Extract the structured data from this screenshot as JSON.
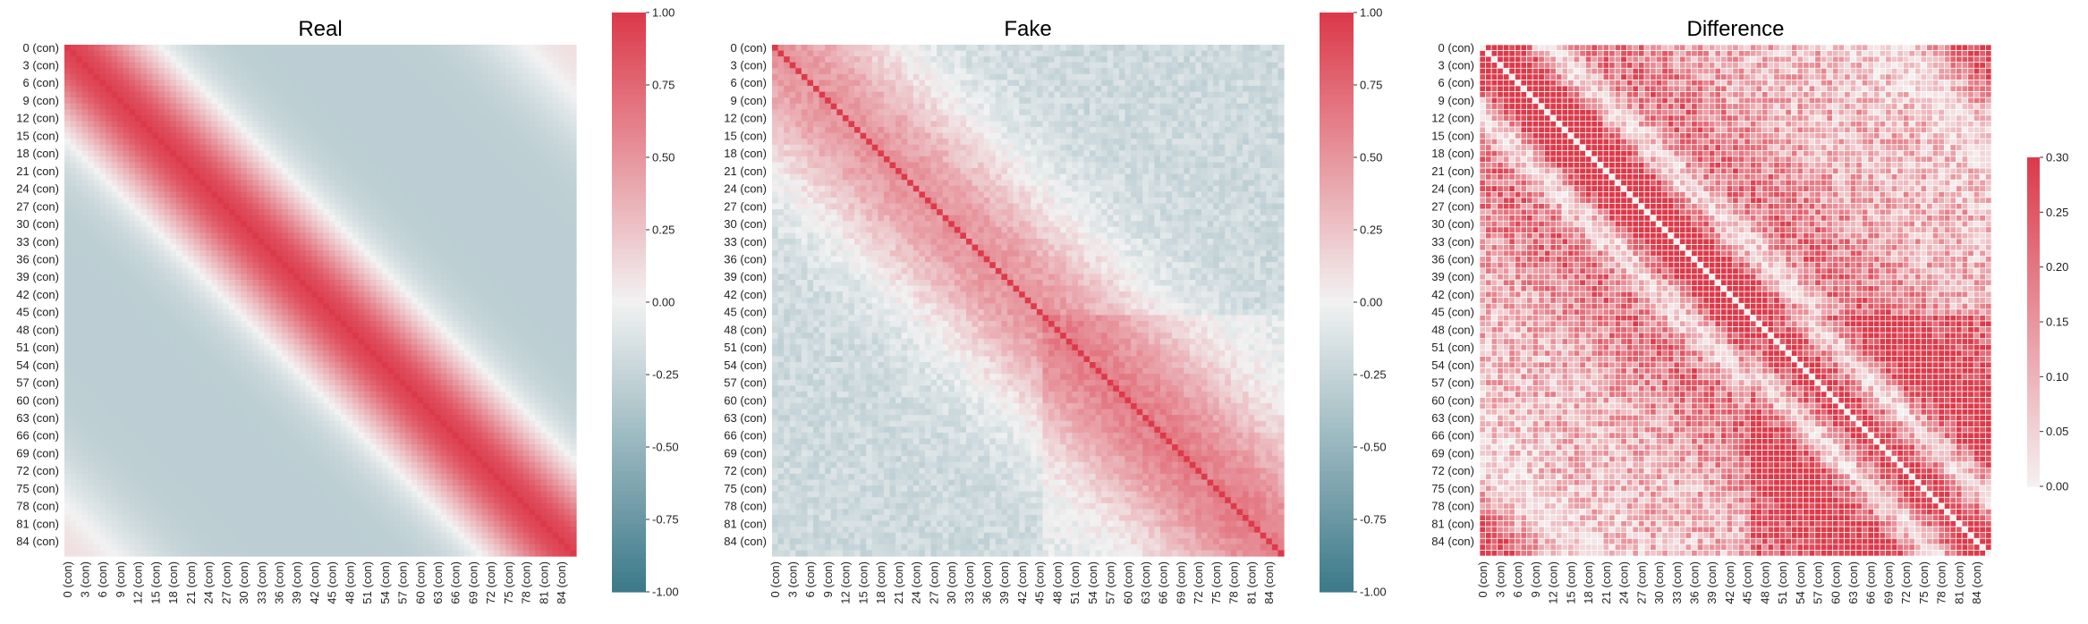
{
  "chart_data": [
    {
      "type": "heatmap",
      "title": "Real",
      "n": 87,
      "label_step": 3,
      "label_suffix": " (con)",
      "colormap": "diverging",
      "vmin": -1.0,
      "vmax": 1.0,
      "colorbar_ticks": [
        "-1.00",
        "-0.75",
        "-0.50",
        "-0.25",
        "0.00",
        "0.25",
        "0.50",
        "0.75",
        "1.00"
      ],
      "colorbar_values": [
        -1.0,
        -0.75,
        -0.5,
        -0.25,
        0.0,
        0.25,
        0.5,
        0.75,
        1.0
      ],
      "pattern": "smooth band correlation: 1.0 on diagonal, high (~0.9) within ~10 steps, ~-0.3 far off-diagonal, ~0.1 at extreme corners"
    },
    {
      "type": "heatmap",
      "title": "Fake",
      "n": 87,
      "label_step": 3,
      "label_suffix": " (con)",
      "colormap": "diverging",
      "vmin": -1.0,
      "vmax": 1.0,
      "colorbar_ticks": [
        "-1.00",
        "-0.75",
        "-0.50",
        "-0.25",
        "0.00",
        "0.25",
        "0.50",
        "0.75",
        "1.00"
      ],
      "colorbar_values": [
        -1.0,
        -0.75,
        -0.5,
        -0.25,
        0.0,
        0.25,
        0.5,
        0.75,
        1.0
      ],
      "pattern": "noisy band correlation: 1.0 on diagonal, ~0.4 near diagonal, ~-0.2 off-diagonal"
    },
    {
      "type": "heatmap",
      "title": "Difference",
      "n": 87,
      "label_step": 3,
      "label_suffix": " (con)",
      "colormap": "sequential",
      "vmin": 0.0,
      "vmax": 0.3,
      "colorbar_ticks": [
        "0.00",
        "0.05",
        "0.10",
        "0.15",
        "0.20",
        "0.25",
        "0.30"
      ],
      "colorbar_values": [
        0.0,
        0.05,
        0.1,
        0.15,
        0.2,
        0.25,
        0.3
      ],
      "pattern": "absolute difference: 0 on diagonal, >=0.3 in near-diagonal band, scattered moderate values elsewhere"
    }
  ],
  "colors": {
    "negative": "#3d7a8a",
    "neutral": "#f2f2f2",
    "positive": "#dc3a4a",
    "seq_low": "#f5f0f0",
    "seq_high": "#dc3a4a",
    "cell_border": "#ffffff"
  }
}
